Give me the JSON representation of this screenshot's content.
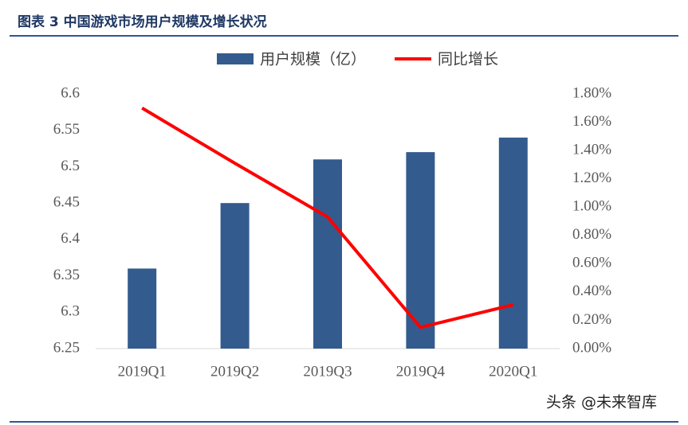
{
  "chart_data": {
    "type": "bar-line",
    "title": "图表 3  中国游戏市场用户规模及增长状况",
    "categories": [
      "2019Q1",
      "2019Q2",
      "2019Q3",
      "2019Q4",
      "2020Q1"
    ],
    "series": [
      {
        "name": "用户规模（亿）",
        "type": "bar",
        "color": "#335b8e",
        "values": [
          6.36,
          6.45,
          6.51,
          6.52,
          6.54
        ]
      },
      {
        "name": "同比增长",
        "type": "line",
        "axis": "y2",
        "color": "#ff0000",
        "values": [
          1.7,
          1.31,
          0.93,
          0.15,
          0.31
        ]
      }
    ],
    "ylim": [
      6.25,
      6.6
    ],
    "yticks": [
      6.25,
      6.3,
      6.35,
      6.4,
      6.45,
      6.5,
      6.55,
      6.6
    ],
    "y2lim": [
      0,
      1.8
    ],
    "y2ticks": [
      {
        "value": 0,
        "label": "0.00%"
      },
      {
        "value": 0.2,
        "label": "0.20%"
      },
      {
        "value": 0.4,
        "label": "0.40%"
      },
      {
        "value": 0.6,
        "label": "0.60%"
      },
      {
        "value": 0.8,
        "label": "0.80%"
      },
      {
        "value": 1.0,
        "label": "1.00%"
      },
      {
        "value": 1.2,
        "label": "1.20%"
      },
      {
        "value": 1.4,
        "label": "1.40%"
      },
      {
        "value": 1.6,
        "label": "1.60%"
      },
      {
        "value": 1.8,
        "label": "1.80%"
      }
    ],
    "legend": "top",
    "watermark": "头条 @未来智库"
  }
}
